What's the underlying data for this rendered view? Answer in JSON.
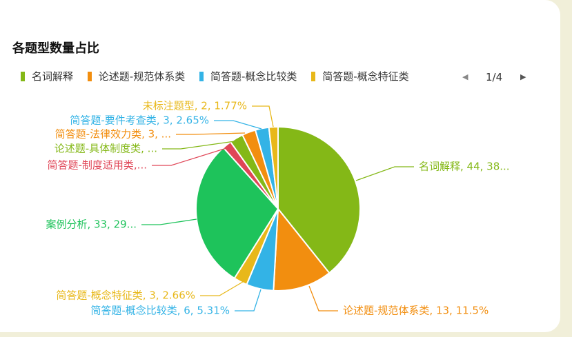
{
  "chart_data": {
    "type": "pie",
    "title": "各题型数量占比",
    "legend": {
      "placement": "top-left",
      "visible_items": [
        {
          "name": "名词解释",
          "color": "#84b817"
        },
        {
          "name": "论述题-规范体系类",
          "color": "#f28e0f"
        },
        {
          "name": "简答题-概念比较类",
          "color": "#33b3e6"
        },
        {
          "name": "简答题-概念特征类",
          "color": "#e8b81a"
        }
      ],
      "page": "1/4"
    },
    "slices": [
      {
        "name": "名词解释",
        "value": 44,
        "color": "#84b817",
        "label": "名词解释, 44, 38..."
      },
      {
        "name": "论述题-规范体系类",
        "value": 13,
        "color": "#f28e0f",
        "label": "论述题-规范体系类, 13, 11.5%"
      },
      {
        "name": "简答题-概念比较类",
        "value": 6,
        "color": "#33b3e6",
        "label": "简答题-概念比较类, 6, 5.31%"
      },
      {
        "name": "简答题-概念特征类",
        "value": 3,
        "color": "#e8b81a",
        "label": "简答题-概念特征类, 3, 2.66%"
      },
      {
        "name": "案例分析",
        "value": 33,
        "color": "#1ec35b",
        "label": "案例分析, 33, 29..."
      },
      {
        "name": "简答题-制度适用类",
        "value": 2,
        "color": "#e04657",
        "label": "简答题-制度适用类,..."
      },
      {
        "name": "论述题-具体制度类",
        "value": 3,
        "color": "#84b817",
        "label": "论述题-具体制度类, ..."
      },
      {
        "name": "简答题-法律效力类",
        "value": 3,
        "color": "#f28e0f",
        "label": "简答题-法律效力类, 3, ..."
      },
      {
        "name": "简答题-要件考查类",
        "value": 3,
        "color": "#33b3e6",
        "label": "简答题-要件考查类, 3, 2.65%"
      },
      {
        "name": "未标注题型",
        "value": 2,
        "color": "#e8b81a",
        "label": "未标注题型, 2, 1.77%"
      }
    ]
  }
}
